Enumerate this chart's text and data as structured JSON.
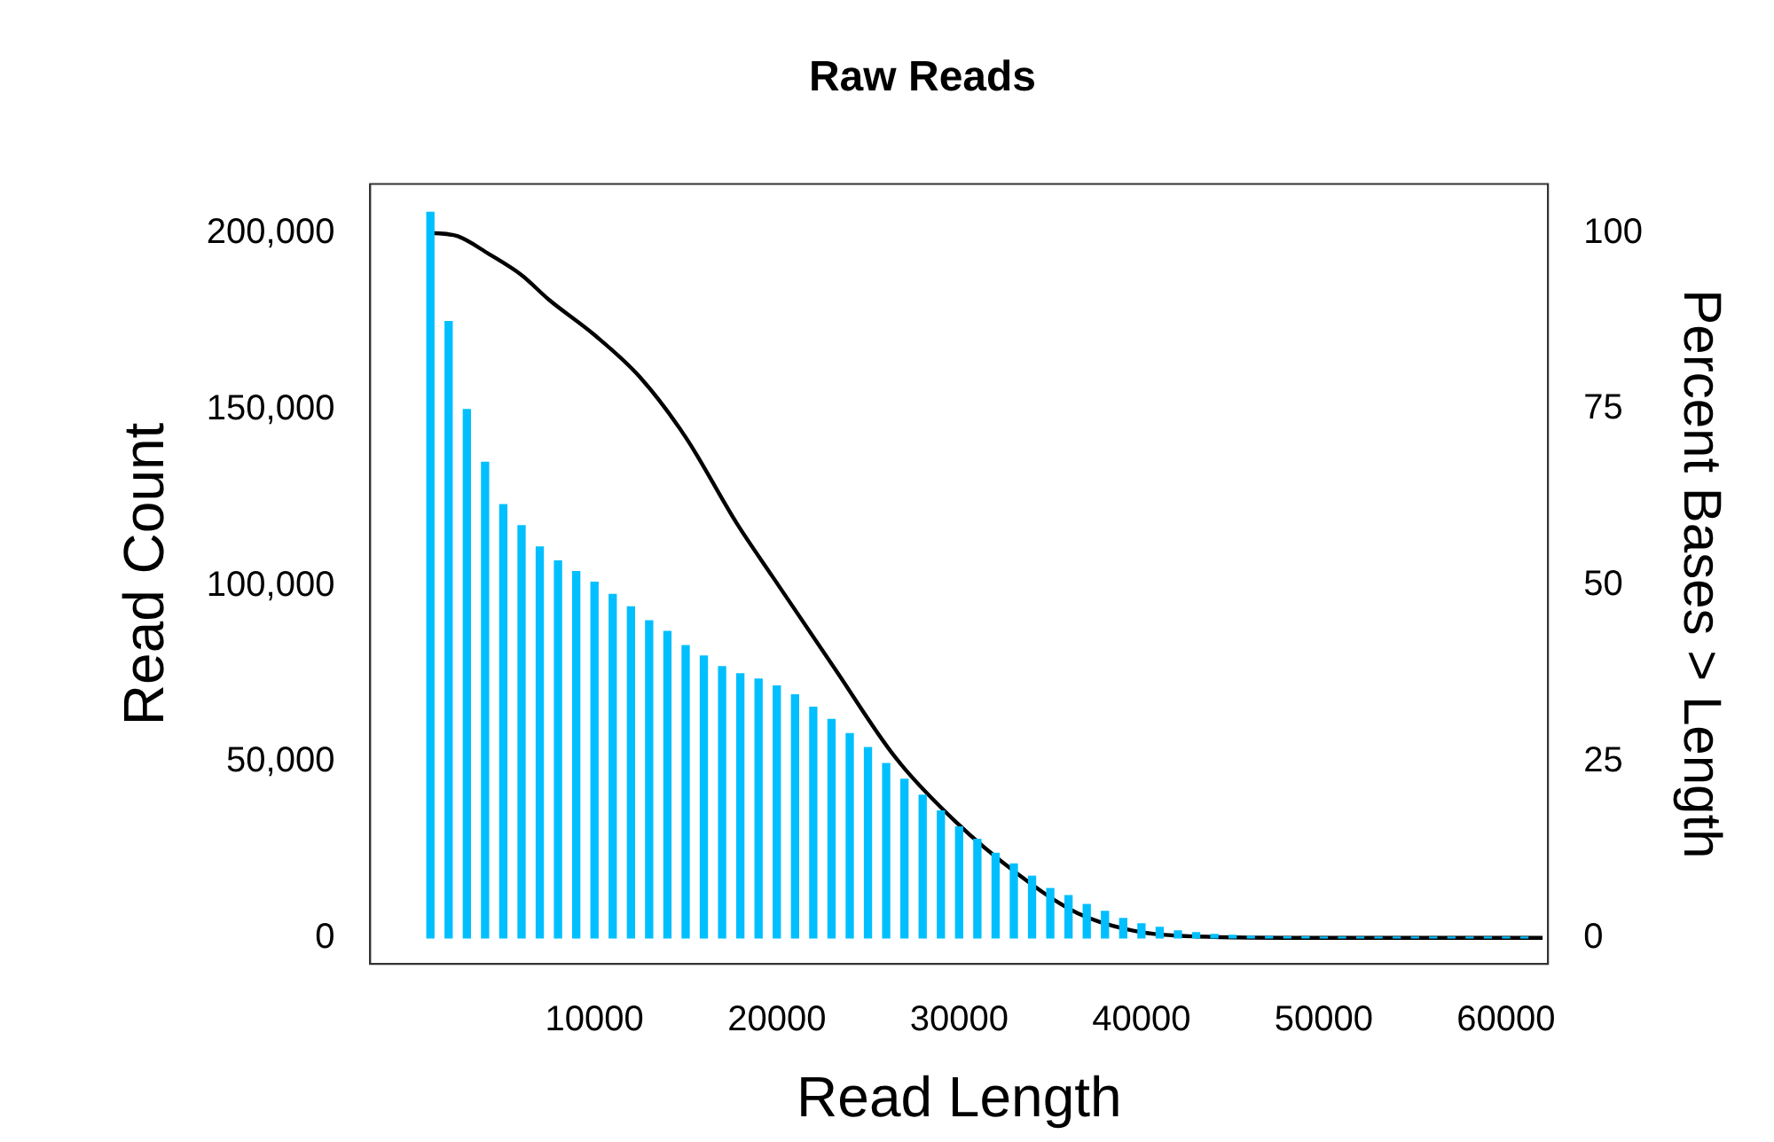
{
  "chart_data": {
    "type": "bar",
    "title": "Raw Reads",
    "xlabel": "Read Length",
    "ylabel": "Read Count",
    "y2label": "Percent Bases > Length",
    "xlim": [
      -2300,
      62300
    ],
    "xticks": [
      10000,
      20000,
      30000,
      40000,
      50000,
      60000
    ],
    "ylim": [
      -7400,
      214000
    ],
    "yticks": [
      0,
      {
        "value": 50000,
        "label": "50,000"
      },
      {
        "value": 100000,
        "label": "100,000"
      },
      {
        "value": 150000,
        "label": "150,000"
      },
      {
        "value": 200000,
        "label": "200,000"
      }
    ],
    "y2lim": [
      -3.7,
      106.9
    ],
    "y2ticks": [
      0,
      25,
      50,
      75,
      100
    ],
    "grid": false,
    "legend": false,
    "marker": "none",
    "line_style": "solid",
    "series": [
      {
        "color": "#00bfff",
        "x": [
          1000,
          2000,
          3000,
          4000,
          5000,
          6000,
          7000,
          8000,
          9000,
          10000,
          11000,
          12000,
          13000,
          14000,
          15000,
          16000,
          17000,
          18000,
          19000,
          20000,
          21000,
          22000,
          23000,
          24000,
          25000,
          26000,
          27000,
          28000,
          29000,
          30000,
          31000,
          32000,
          33000,
          34000,
          35000,
          36000,
          37000,
          38000,
          39000,
          40000,
          41000,
          42000,
          43000,
          44000,
          45000,
          46000,
          47000,
          48000,
          49000,
          50000,
          51000,
          52000,
          53000,
          54000,
          55000,
          56000,
          57000,
          58000,
          59000,
          60000,
          61000
        ],
        "values": [
          206000,
          175000,
          150000,
          135000,
          123000,
          117000,
          111000,
          107000,
          104000,
          101000,
          97500,
          94000,
          90000,
          87000,
          83000,
          80000,
          77000,
          75000,
          73500,
          71500,
          69000,
          65500,
          62000,
          58000,
          54000,
          49500,
          45000,
          40500,
          36000,
          31500,
          28000,
          24000,
          21000,
          17500,
          14000,
          12000,
          9500,
          7500,
          5500,
          4000,
          3000,
          2000,
          1500,
          1000,
          700,
          500,
          400,
          300,
          300,
          200,
          200,
          200,
          200,
          200,
          200,
          200,
          200,
          200,
          200,
          200,
          200
        ]
      },
      {
        "type": "line",
        "axis": "y2",
        "color": "#000000",
        "x": [
          1000,
          2500,
          4200,
          6000,
          7500,
          10000,
          12500,
          15000,
          17800,
          19800,
          23200,
          26500,
          29800,
          33200,
          36500,
          39800,
          43000,
          50000,
          62000
        ],
        "values": [
          100,
          99.5,
          97,
          94,
          90.5,
          85.5,
          79.5,
          71,
          58.8,
          51.1,
          38.1,
          25.6,
          16.5,
          9.1,
          3.5,
          0.9,
          0.2,
          0,
          0
        ]
      }
    ]
  }
}
